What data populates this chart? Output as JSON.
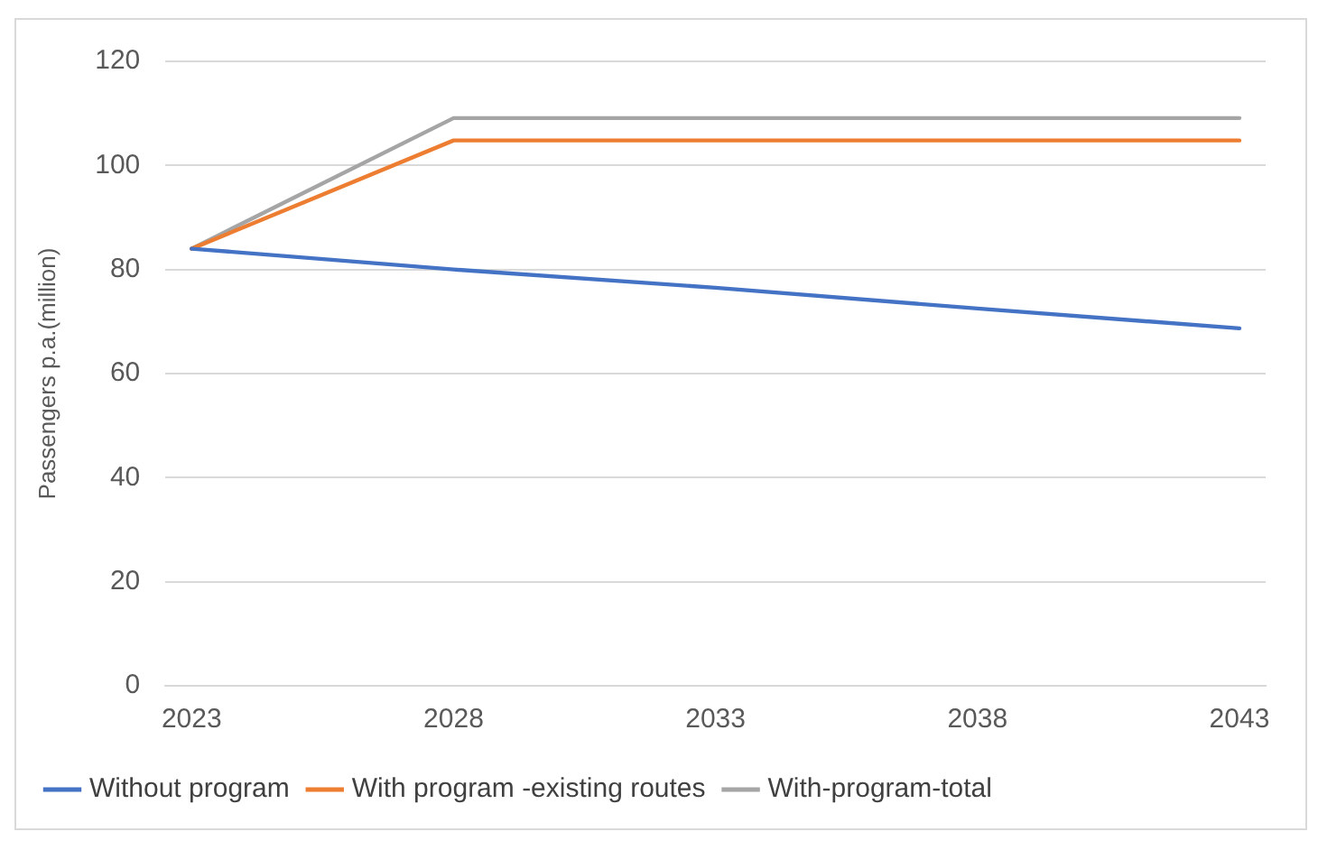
{
  "chart_data": {
    "type": "line",
    "ylabel": "Passengers p.a.(million)",
    "xlim": [
      2022.5,
      2043.5
    ],
    "xticks": [
      2023,
      2028,
      2033,
      2038,
      2043
    ],
    "ylim": [
      0,
      120
    ],
    "yticks": [
      0,
      20,
      40,
      60,
      80,
      100,
      120
    ],
    "grid": "y",
    "legend": "bottom",
    "marker": "none",
    "line_style": "solid",
    "series": [
      {
        "name": "Without program",
        "color": "#4472c4",
        "x": [
          2023,
          2028,
          2033,
          2038,
          2043
        ],
        "values": [
          84,
          80,
          76.5,
          72.5,
          68.7
        ]
      },
      {
        "name": "With program -existing routes",
        "color": "#ed7d31",
        "x": [
          2023,
          2028,
          2043
        ],
        "values": [
          84,
          104.8,
          104.8
        ]
      },
      {
        "name": "With-program-total",
        "color": "#a5a5a5",
        "x": [
          2023,
          2028,
          2043
        ],
        "values": [
          84,
          109.1,
          109.1
        ]
      }
    ]
  }
}
